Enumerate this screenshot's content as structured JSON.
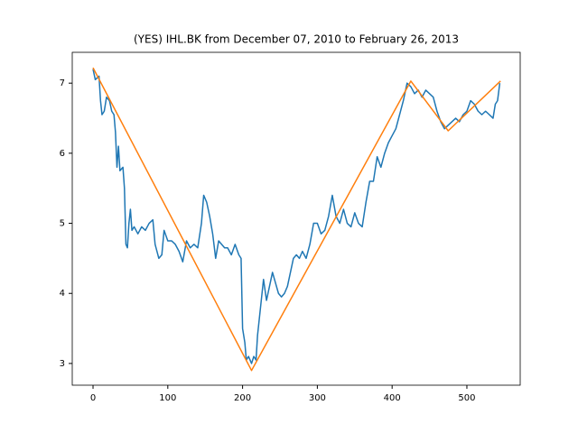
{
  "chart_data": {
    "type": "line",
    "title": "(YES) IHL.BK from December 07, 2010 to February 26, 2013",
    "xlim": [
      -27.8,
      571.3
    ],
    "ylim": [
      2.69,
      7.44
    ],
    "xticks": [
      0,
      100,
      200,
      300,
      400,
      500
    ],
    "yticks": [
      3,
      4,
      5,
      6,
      7
    ],
    "series": [
      {
        "color": "#1f77b4",
        "x": [
          0,
          3,
          8,
          10,
          12,
          15,
          18,
          22,
          25,
          28,
          30,
          32,
          34,
          36,
          40,
          42,
          44,
          46,
          48,
          50,
          52,
          55,
          60,
          65,
          70,
          75,
          80,
          83,
          88,
          92,
          95,
          100,
          105,
          110,
          115,
          120,
          125,
          130,
          135,
          140,
          145,
          148,
          152,
          156,
          160,
          164,
          168,
          172,
          176,
          180,
          185,
          190,
          195,
          198,
          200,
          203,
          205,
          208,
          212,
          215,
          218,
          220,
          224,
          228,
          232,
          236,
          240,
          244,
          248,
          252,
          256,
          260,
          264,
          268,
          272,
          276,
          280,
          285,
          290,
          295,
          300,
          305,
          310,
          315,
          320,
          325,
          330,
          335,
          340,
          345,
          350,
          355,
          360,
          365,
          370,
          375,
          380,
          385,
          390,
          395,
          400,
          405,
          410,
          415,
          420,
          425,
          430,
          435,
          440,
          445,
          450,
          455,
          460,
          465,
          470,
          475,
          480,
          485,
          490,
          495,
          500,
          505,
          510,
          515,
          520,
          525,
          530,
          535,
          538,
          541,
          544
        ],
        "values": [
          7.2,
          7.05,
          7.1,
          6.75,
          6.55,
          6.6,
          6.8,
          6.75,
          6.6,
          6.55,
          6.3,
          5.8,
          6.1,
          5.75,
          5.8,
          5.5,
          4.7,
          4.65,
          5.0,
          5.2,
          4.9,
          4.95,
          4.85,
          4.95,
          4.9,
          5.0,
          5.05,
          4.7,
          4.5,
          4.55,
          4.9,
          4.75,
          4.75,
          4.7,
          4.6,
          4.45,
          4.75,
          4.65,
          4.7,
          4.65,
          5.0,
          5.4,
          5.3,
          5.1,
          4.85,
          4.5,
          4.75,
          4.7,
          4.65,
          4.65,
          4.55,
          4.7,
          4.55,
          4.5,
          3.5,
          3.3,
          3.05,
          3.1,
          3.0,
          3.1,
          3.05,
          3.4,
          3.8,
          4.2,
          3.9,
          4.1,
          4.3,
          4.15,
          4.0,
          3.95,
          4.0,
          4.1,
          4.3,
          4.5,
          4.55,
          4.5,
          4.6,
          4.5,
          4.7,
          5.0,
          5.0,
          4.85,
          4.9,
          5.1,
          5.4,
          5.1,
          5.0,
          5.2,
          5.0,
          4.95,
          5.15,
          5.0,
          4.95,
          5.3,
          5.6,
          5.6,
          5.95,
          5.8,
          6.0,
          6.15,
          6.25,
          6.35,
          6.55,
          6.75,
          7.0,
          6.95,
          6.85,
          6.9,
          6.8,
          6.9,
          6.85,
          6.8,
          6.6,
          6.45,
          6.35,
          6.4,
          6.45,
          6.5,
          6.45,
          6.55,
          6.6,
          6.75,
          6.7,
          6.6,
          6.55,
          6.6,
          6.55,
          6.5,
          6.7,
          6.75,
          7.0
        ]
      },
      {
        "color": "#ff7f0e",
        "x": [
          0,
          212,
          425,
          475,
          545
        ],
        "values": [
          7.22,
          2.9,
          7.03,
          6.32,
          7.03
        ]
      }
    ]
  }
}
